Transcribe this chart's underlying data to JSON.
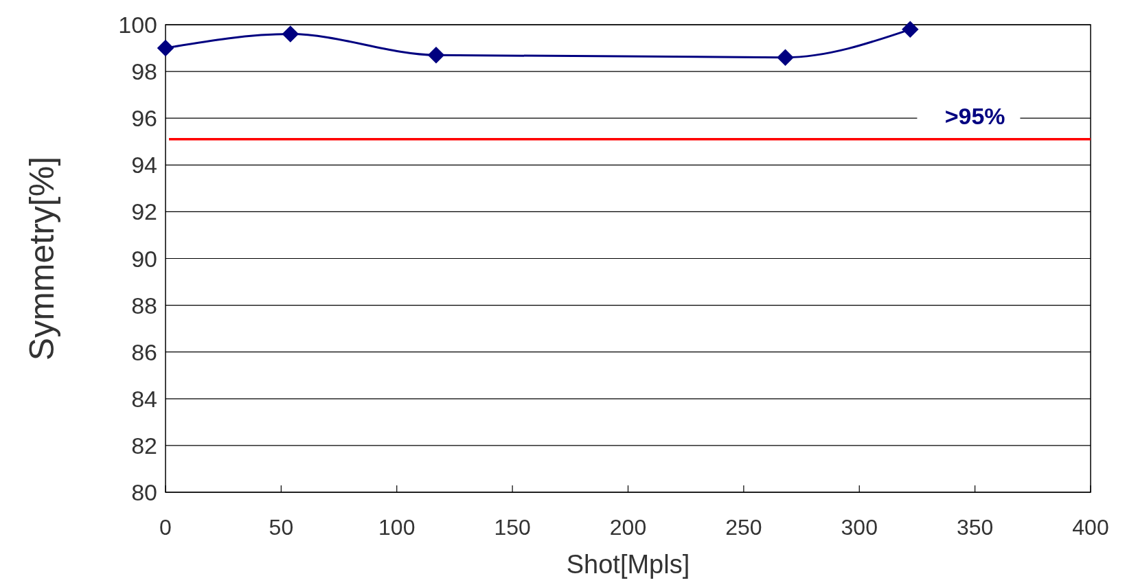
{
  "chart_data": {
    "type": "line",
    "xlabel": "Shot[Mpls]",
    "ylabel": "Symmetry[%]",
    "series": [
      {
        "color": "#000080",
        "x": [
          0,
          54,
          117,
          268,
          322
        ],
        "values": [
          99.0,
          99.6,
          98.7,
          98.6,
          99.8
        ]
      }
    ],
    "xlim": [
      0,
      400
    ],
    "xticks": [
      0,
      50,
      100,
      150,
      200,
      250,
      300,
      350,
      400
    ],
    "ylim": [
      80,
      100
    ],
    "yticks": [
      80,
      82,
      84,
      86,
      88,
      90,
      92,
      94,
      96,
      98,
      100
    ],
    "grid": "y",
    "marker": "diamond",
    "line_style": "solid",
    "ref_lines": [
      {
        "axis": "y",
        "value": 95.1,
        "label": ">95%",
        "color": "#ff0000"
      }
    ]
  }
}
